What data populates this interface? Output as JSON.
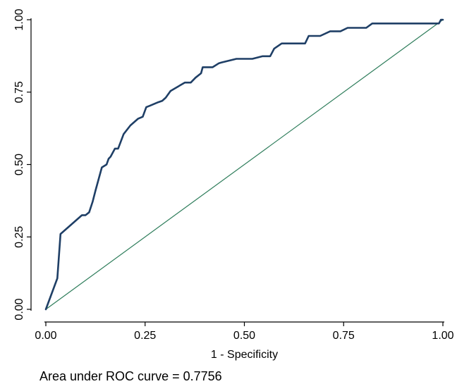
{
  "chart_data": {
    "type": "line",
    "xlabel": "1 - Specificity",
    "ylabel": "",
    "xlim": [
      0,
      1
    ],
    "ylim": [
      0,
      1
    ],
    "xticks": [
      "0.00",
      "0.25",
      "0.50",
      "0.75",
      "1.00"
    ],
    "yticks": [
      "0.00",
      "0.25",
      "0.50",
      "0.75",
      "1.00"
    ],
    "grid": false,
    "note": "Area under ROC curve = 0.7756",
    "colors": {
      "roc": "#1f3f66",
      "reference": "#2e7d5b"
    },
    "series": [
      {
        "key": "roc",
        "x": [
          0.0,
          0.029,
          0.037,
          0.091,
          0.1,
          0.109,
          0.118,
          0.125,
          0.141,
          0.153,
          0.158,
          0.163,
          0.174,
          0.182,
          0.196,
          0.213,
          0.232,
          0.244,
          0.253,
          0.262,
          0.283,
          0.293,
          0.302,
          0.314,
          0.35,
          0.365,
          0.377,
          0.391,
          0.395,
          0.42,
          0.436,
          0.442,
          0.48,
          0.52,
          0.546,
          0.565,
          0.575,
          0.594,
          0.61,
          0.653,
          0.662,
          0.691,
          0.716,
          0.735,
          0.742,
          0.76,
          0.78,
          0.807,
          0.822,
          0.99,
          0.995,
          1.0
        ],
        "y": [
          0.0,
          0.107,
          0.26,
          0.325,
          0.325,
          0.335,
          0.372,
          0.41,
          0.49,
          0.5,
          0.52,
          0.527,
          0.555,
          0.555,
          0.605,
          0.635,
          0.658,
          0.665,
          0.698,
          0.703,
          0.715,
          0.72,
          0.731,
          0.754,
          0.783,
          0.783,
          0.8,
          0.815,
          0.836,
          0.836,
          0.85,
          0.852,
          0.865,
          0.865,
          0.874,
          0.874,
          0.9,
          0.918,
          0.918,
          0.918,
          0.944,
          0.944,
          0.96,
          0.96,
          0.96,
          0.972,
          0.972,
          0.972,
          0.987,
          0.987,
          1.0,
          1.0
        ]
      },
      {
        "key": "reference",
        "x": [
          0,
          1
        ],
        "y": [
          0,
          1
        ]
      }
    ]
  }
}
